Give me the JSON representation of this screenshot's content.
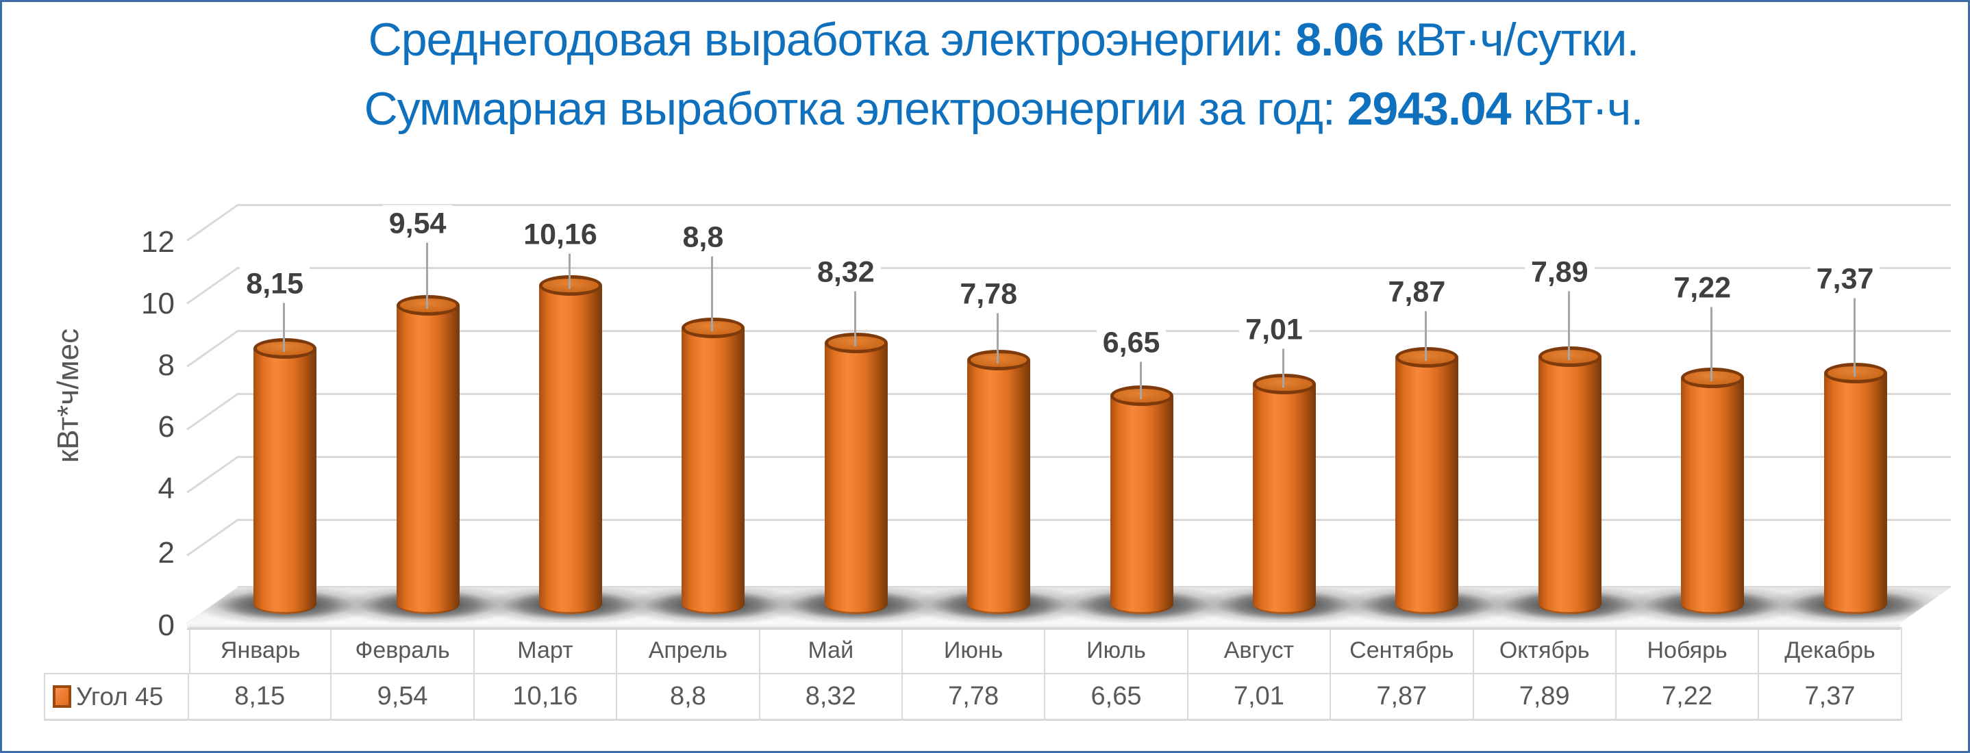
{
  "title": {
    "line1_prefix": "Среднегодовая выработка электроэнергии: ",
    "line1_value": "8.06",
    "line1_suffix": " кВт·ч/сутки.",
    "line2_prefix": "Суммарная выработка электроэнергии за год: ",
    "line2_value": "2943.04",
    "line2_suffix": " кВт·ч.",
    "color": "#0F70BE"
  },
  "chart_data": {
    "type": "bar",
    "subtype": "3d-cylinder",
    "title": "",
    "xlabel": "",
    "ylabel": "кВт*ч/мес",
    "ylim": [
      0,
      12
    ],
    "ytick_step": 2,
    "yticks": [
      "12",
      "10",
      "8",
      "6",
      "4",
      "2",
      "0"
    ],
    "grid": true,
    "legend_position": "table-left",
    "categories": [
      "Январь",
      "Февраль",
      "Март",
      "Апрель",
      "Май",
      "Июнь",
      "Июль",
      "Август",
      "Сентябрь",
      "Октябрь",
      "Нобярь",
      "Декабрь"
    ],
    "series": [
      {
        "name": "Угол 45",
        "values": [
          8.15,
          9.54,
          10.16,
          8.8,
          8.32,
          7.78,
          6.65,
          7.01,
          7.87,
          7.89,
          7.22,
          7.37
        ]
      }
    ],
    "value_labels": [
      "8,15",
      "9,54",
      "10,16",
      "8,8",
      "8,32",
      "7,78",
      "6,65",
      "7,01",
      "7,87",
      "7,89",
      "7,22",
      "7,37"
    ]
  },
  "colors": {
    "frame_border": "#3E6CA6",
    "title_text": "#0F70BE",
    "bar_fill": "#ED7D31",
    "bar_rim": "#7E3A0B",
    "gridline": "#D9D9D9",
    "leader_line": "#A6A6A6",
    "data_label": "#3F3F3F",
    "axis_text": "#595959",
    "legend_swatch_border": "#9C480F"
  }
}
